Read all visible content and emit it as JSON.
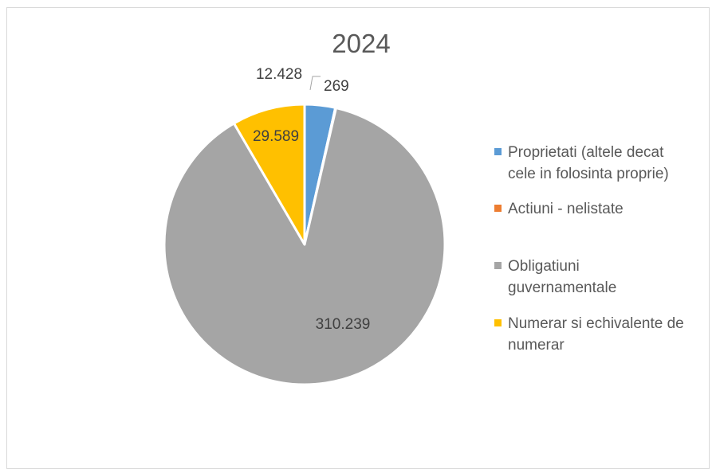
{
  "chart_data": {
    "type": "pie",
    "title": "2024",
    "categories": [
      "Proprietati (altele decat cele in folosinta proprie)",
      "Actiuni - nelistate",
      "Obligatiuni guvernamentale",
      "Numerar si echivalente de numerar"
    ],
    "values": [
      12428,
      269,
      310239,
      29589
    ],
    "data_labels": [
      "12.428",
      "269",
      "310.239",
      "29.589"
    ],
    "colors": [
      "#5b9bd5",
      "#ed7d31",
      "#a5a5a5",
      "#ffc000"
    ],
    "legend": {
      "placement": "right",
      "items": [
        {
          "lines": [
            "Proprietati (altele decat",
            "cele in folosinta proprie)"
          ],
          "color": "#5b9bd5"
        },
        {
          "lines": [
            "Actiuni - nelistate"
          ],
          "color": "#ed7d31"
        },
        {
          "lines": [
            "Obligatiuni",
            "guvernamentale"
          ],
          "color": "#a5a5a5"
        },
        {
          "lines": [
            "Numerar si echivalente de",
            "numerar"
          ],
          "color": "#ffc000"
        }
      ]
    }
  }
}
